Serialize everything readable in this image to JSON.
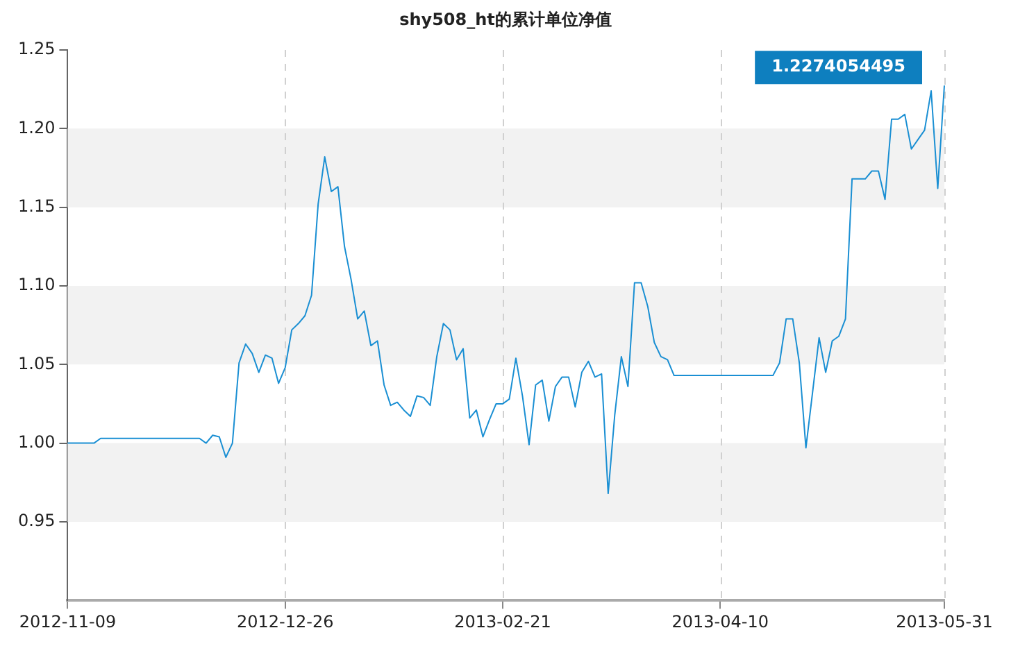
{
  "chart_data": {
    "type": "line",
    "title": "shy508_ht的累计单位净值",
    "categories": [
      "2012-11-09",
      null,
      null,
      null,
      null,
      null,
      null,
      null,
      null,
      null,
      null,
      null,
      null,
      null,
      null,
      null,
      null,
      null,
      null,
      null,
      null,
      null,
      null,
      null,
      null,
      null,
      null,
      null,
      null,
      null,
      null,
      null,
      null,
      "2012-12-26",
      null,
      null,
      null,
      null,
      null,
      null,
      null,
      null,
      null,
      null,
      null,
      null,
      null,
      null,
      null,
      null,
      null,
      null,
      null,
      null,
      null,
      null,
      null,
      null,
      null,
      null,
      null,
      null,
      null,
      null,
      null,
      null,
      "2013-02-21",
      null,
      null,
      null,
      null,
      null,
      null,
      null,
      null,
      null,
      null,
      null,
      null,
      null,
      null,
      null,
      null,
      null,
      null,
      null,
      null,
      null,
      null,
      null,
      null,
      null,
      null,
      null,
      null,
      null,
      null,
      null,
      null,
      "2013-04-10",
      null,
      null,
      null,
      null,
      null,
      null,
      null,
      null,
      null,
      null,
      null,
      null,
      null,
      null,
      null,
      null,
      null,
      null,
      null,
      null,
      null,
      null,
      null,
      null,
      null,
      null,
      null,
      null,
      null,
      null,
      null,
      null,
      null,
      "2013-05-31"
    ],
    "series": [
      {
        "color": "#1a8fd3",
        "values": [
          1.0,
          1.0,
          1.0,
          1.0,
          1.0,
          1.003,
          1.003,
          1.003,
          1.003,
          1.003,
          1.003,
          1.003,
          1.003,
          1.003,
          1.003,
          1.003,
          1.003,
          1.003,
          1.003,
          1.003,
          1.003,
          1.0,
          1.005,
          1.004,
          0.991,
          1.0,
          1.051,
          1.063,
          1.057,
          1.045,
          1.056,
          1.054,
          1.038,
          1.048,
          1.072,
          1.076,
          1.081,
          1.094,
          1.152,
          1.182,
          1.16,
          1.163,
          1.125,
          1.104,
          1.079,
          1.084,
          1.062,
          1.065,
          1.037,
          1.024,
          1.026,
          1.021,
          1.017,
          1.03,
          1.029,
          1.024,
          1.055,
          1.076,
          1.072,
          1.053,
          1.06,
          1.016,
          1.021,
          1.004,
          1.015,
          1.025,
          1.025,
          1.028,
          1.054,
          1.03,
          0.999,
          1.037,
          1.04,
          1.014,
          1.036,
          1.042,
          1.042,
          1.023,
          1.045,
          1.052,
          1.042,
          1.044,
          0.968,
          1.018,
          1.055,
          1.036,
          1.102,
          1.102,
          1.087,
          1.064,
          1.055,
          1.053,
          1.043,
          1.043,
          1.043,
          1.043,
          1.043,
          1.043,
          1.043,
          1.043,
          1.043,
          1.043,
          1.043,
          1.043,
          1.043,
          1.043,
          1.043,
          1.043,
          1.051,
          1.079,
          1.079,
          1.051,
          0.997,
          1.032,
          1.067,
          1.045,
          1.065,
          1.068,
          1.079,
          1.168,
          1.168,
          1.168,
          1.173,
          1.173,
          1.155,
          1.206,
          1.206,
          1.209,
          1.187,
          1.193,
          1.199,
          1.224,
          1.162,
          1.2274054495
        ]
      }
    ],
    "ylim": [
      0.9,
      1.25
    ],
    "yticks": [
      0.95,
      {
        "value": 1.0,
        "label": "1.00"
      },
      1.05,
      {
        "value": 1.1,
        "label": "1.10"
      },
      1.15,
      {
        "value": 1.2,
        "label": "1.20"
      },
      1.25
    ],
    "grid": true,
    "marker": "none",
    "line_style": "solid",
    "annotations": [
      {
        "text": "1.2274054495",
        "x": "2013-05-31",
        "y": 1.2274054495
      }
    ]
  }
}
